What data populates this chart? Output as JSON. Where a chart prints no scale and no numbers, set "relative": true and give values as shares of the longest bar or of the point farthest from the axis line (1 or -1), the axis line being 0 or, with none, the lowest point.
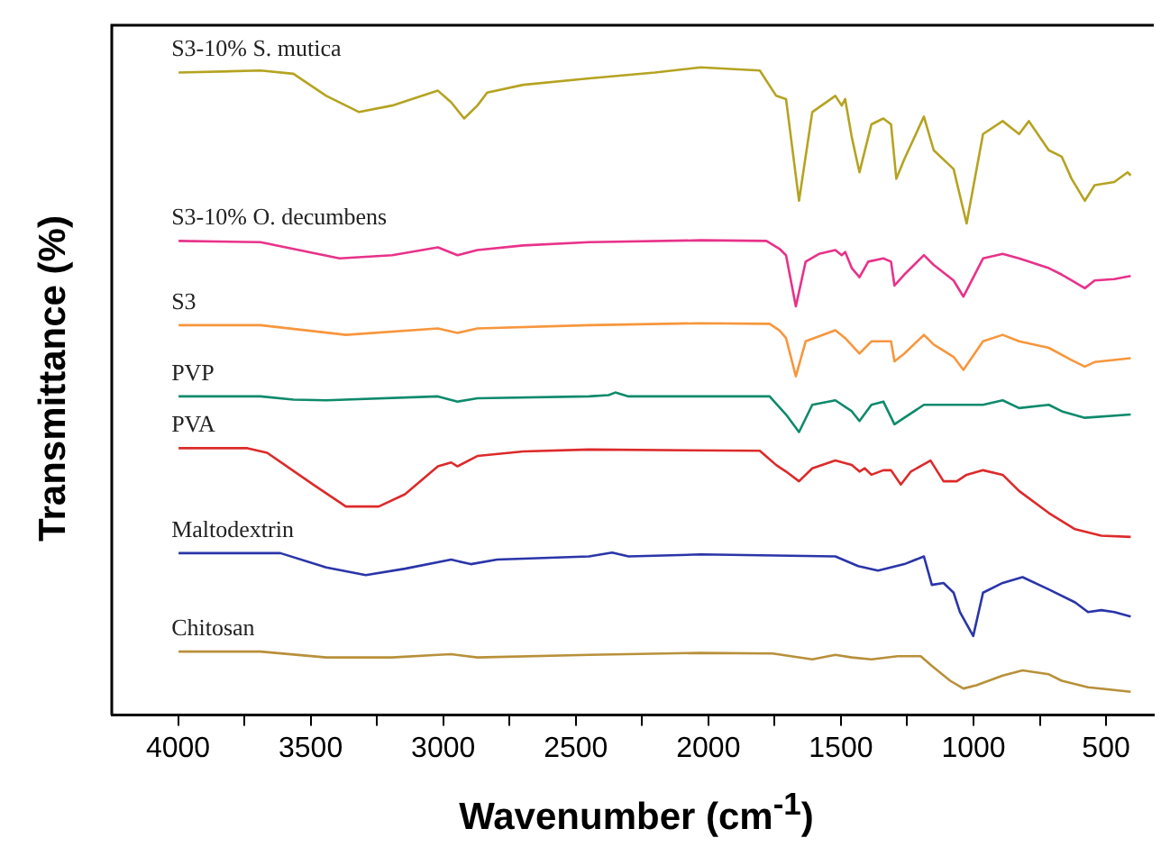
{
  "chart_data": {
    "type": "line",
    "relative": true,
    "xlabel": "Wavenumber (cm$^{-1}$)",
    "ylabel": "Transmittance (%)",
    "xlim": [
      4250,
      320
    ],
    "xticks": [
      4000,
      {
        "value": 3750,
        "label": null
      },
      3500,
      {
        "value": 3250,
        "label": null
      },
      3000,
      {
        "value": 2750,
        "label": null
      },
      2500,
      {
        "value": 2250,
        "label": null
      },
      2000,
      {
        "value": 1750,
        "label": null
      },
      1500,
      {
        "value": 1250,
        "label": null
      },
      1000,
      {
        "value": 750,
        "label": null
      },
      500
    ],
    "grid": false,
    "marker": "none",
    "line_style": "solid",
    "tick_labels": "x",
    "series": [
      {
        "name": "S3-10% S. mutica",
        "color": "#b5a321",
        "x": [
          3998,
          3689,
          3565,
          3441,
          3317,
          3193,
          3020,
          2970,
          2921,
          2871,
          2834,
          2698,
          2450,
          2202,
          2029,
          1806,
          1744,
          1707,
          1658,
          1608,
          1521,
          1497,
          1484,
          1459,
          1430,
          1385,
          1340,
          1311,
          1291,
          1261,
          1187,
          1150,
          1075,
          1026,
          964,
          890,
          828,
          791,
          716,
          667,
          630,
          580,
          543,
          469,
          419,
          407
        ],
        "values": [
          0.992,
          0.995,
          0.99,
          0.956,
          0.931,
          0.941,
          0.964,
          0.946,
          0.921,
          0.941,
          0.961,
          0.973,
          0.983,
          0.992,
          1.0,
          0.995,
          0.956,
          0.951,
          0.794,
          0.931,
          0.956,
          0.941,
          0.951,
          0.892,
          0.838,
          0.912,
          0.921,
          0.912,
          0.828,
          0.858,
          0.924,
          0.872,
          0.843,
          0.759,
          0.897,
          0.917,
          0.897,
          0.917,
          0.872,
          0.862,
          0.828,
          0.794,
          0.818,
          0.823,
          0.838,
          0.833
        ]
      },
      {
        "name": "S3-10% O. decumbens",
        "color": "#e8328a",
        "x": [
          3998,
          3689,
          3391,
          3193,
          3020,
          2946,
          2871,
          2698,
          2450,
          2029,
          1781,
          1732,
          1707,
          1670,
          1633,
          1583,
          1521,
          1497,
          1484,
          1459,
          1430,
          1397,
          1340,
          1311,
          1298,
          1261,
          1187,
          1150,
          1075,
          1038,
          964,
          890,
          828,
          716,
          667,
          630,
          580,
          543,
          469,
          407
        ],
        "values": [
          0.732,
          0.73,
          0.705,
          0.71,
          0.722,
          0.71,
          0.718,
          0.725,
          0.73,
          0.733,
          0.732,
          0.72,
          0.71,
          0.631,
          0.7,
          0.712,
          0.718,
          0.71,
          0.715,
          0.69,
          0.676,
          0.7,
          0.705,
          0.7,
          0.663,
          0.68,
          0.71,
          0.695,
          0.671,
          0.646,
          0.705,
          0.712,
          0.705,
          0.69,
          0.68,
          0.671,
          0.659,
          0.671,
          0.673,
          0.678
        ]
      },
      {
        "name": "S3",
        "color": "#f7963c",
        "x": [
          3998,
          3689,
          3367,
          3020,
          2946,
          2871,
          2450,
          2029,
          1769,
          1732,
          1707,
          1670,
          1633,
          1521,
          1484,
          1430,
          1385,
          1311,
          1298,
          1261,
          1187,
          1150,
          1075,
          1038,
          964,
          890,
          828,
          716,
          630,
          580,
          543,
          407
        ],
        "values": [
          0.602,
          0.602,
          0.587,
          0.597,
          0.59,
          0.597,
          0.602,
          0.605,
          0.604,
          0.594,
          0.582,
          0.523,
          0.577,
          0.594,
          0.582,
          0.558,
          0.577,
          0.577,
          0.546,
          0.558,
          0.587,
          0.572,
          0.553,
          0.533,
          0.577,
          0.587,
          0.577,
          0.567,
          0.548,
          0.538,
          0.545,
          0.551
        ]
      },
      {
        "name": "PVP",
        "color": "#0e8a6c",
        "x": [
          3998,
          3689,
          3565,
          3441,
          3020,
          2946,
          2871,
          2450,
          2376,
          2351,
          2301,
          1769,
          1707,
          1658,
          1608,
          1521,
          1459,
          1430,
          1385,
          1340,
          1298,
          1261,
          1187,
          964,
          890,
          828,
          716,
          667,
          580,
          407
        ],
        "values": [
          0.492,
          0.492,
          0.487,
          0.486,
          0.492,
          0.484,
          0.489,
          0.492,
          0.494,
          0.498,
          0.492,
          0.492,
          0.464,
          0.437,
          0.479,
          0.486,
          0.469,
          0.454,
          0.479,
          0.484,
          0.449,
          0.459,
          0.479,
          0.479,
          0.486,
          0.474,
          0.479,
          0.469,
          0.459,
          0.464
        ]
      },
      {
        "name": "PVA",
        "color": "#dd2a2a",
        "x": [
          3998,
          3738,
          3664,
          3491,
          3367,
          3243,
          3144,
          3020,
          2970,
          2946,
          2871,
          2698,
          2450,
          1806,
          1744,
          1707,
          1658,
          1608,
          1521,
          1459,
          1430,
          1410,
          1385,
          1340,
          1311,
          1274,
          1236,
          1162,
          1113,
          1063,
          1026,
          964,
          890,
          828,
          716,
          617,
          518,
          407
        ],
        "values": [
          0.412,
          0.412,
          0.405,
          0.356,
          0.322,
          0.322,
          0.341,
          0.384,
          0.39,
          0.384,
          0.4,
          0.407,
          0.41,
          0.408,
          0.386,
          0.376,
          0.361,
          0.381,
          0.393,
          0.386,
          0.376,
          0.381,
          0.371,
          0.378,
          0.378,
          0.356,
          0.376,
          0.393,
          0.361,
          0.361,
          0.371,
          0.378,
          0.371,
          0.346,
          0.312,
          0.287,
          0.277,
          0.275
        ]
      },
      {
        "name": "Maltodextrin",
        "color": "#2a35a8",
        "x": [
          3998,
          3614,
          3441,
          3292,
          3144,
          2970,
          2896,
          2797,
          2450,
          2363,
          2301,
          2029,
          1521,
          1435,
          1360,
          1261,
          1187,
          1157,
          1113,
          1075,
          1051,
          1001,
          964,
          890,
          815,
          716,
          617,
          568,
          518,
          469,
          407
        ],
        "values": [
          0.25,
          0.25,
          0.228,
          0.216,
          0.226,
          0.24,
          0.233,
          0.24,
          0.245,
          0.251,
          0.245,
          0.248,
          0.245,
          0.23,
          0.223,
          0.233,
          0.245,
          0.201,
          0.204,
          0.189,
          0.159,
          0.122,
          0.189,
          0.204,
          0.213,
          0.194,
          0.174,
          0.159,
          0.162,
          0.159,
          0.152
        ]
      },
      {
        "name": "Chitosan",
        "color": "#b8903a",
        "x": [
          3998,
          3689,
          3441,
          3193,
          3020,
          2970,
          2871,
          2450,
          2029,
          1757,
          1608,
          1521,
          1459,
          1385,
          1286,
          1199,
          1157,
          1088,
          1038,
          989,
          890,
          815,
          716,
          667,
          568,
          407
        ],
        "values": [
          0.098,
          0.098,
          0.089,
          0.089,
          0.093,
          0.094,
          0.089,
          0.093,
          0.096,
          0.095,
          0.086,
          0.093,
          0.089,
          0.086,
          0.091,
          0.091,
          0.076,
          0.053,
          0.041,
          0.046,
          0.061,
          0.069,
          0.063,
          0.053,
          0.043,
          0.036
        ]
      }
    ]
  }
}
